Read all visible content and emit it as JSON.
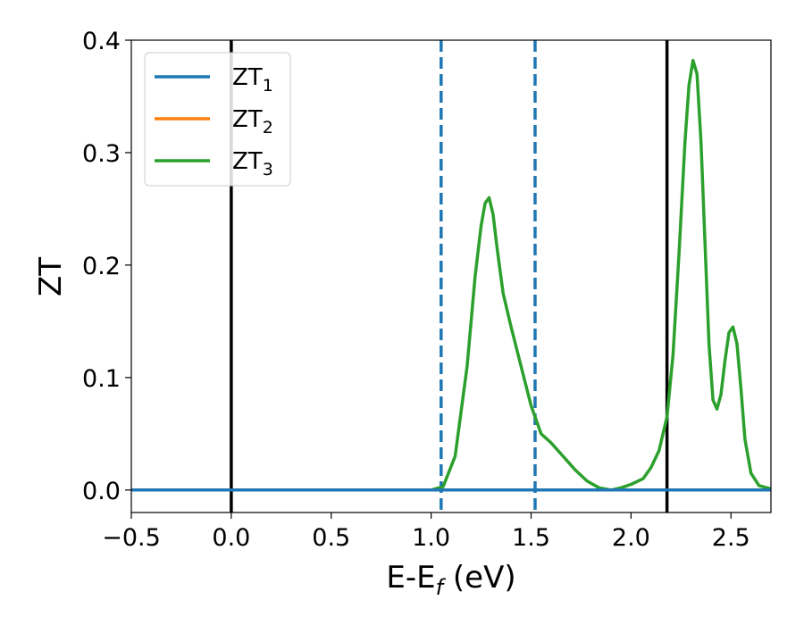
{
  "chart_data": {
    "type": "line",
    "title": "",
    "xlabel": {
      "main": "E-E",
      "sub": "f",
      "suffix": " (eV)"
    },
    "ylabel": "ZT",
    "xlim": [
      -0.5,
      2.7
    ],
    "ylim": [
      -0.02,
      0.4
    ],
    "xticks": [
      -0.5,
      0.0,
      0.5,
      1.0,
      1.5,
      2.0,
      2.5
    ],
    "xtick_labels": [
      "−0.5",
      "0.0",
      "0.5",
      "1.0",
      "1.5",
      "2.0",
      "2.5"
    ],
    "yticks": [
      0.0,
      0.1,
      0.2,
      0.3,
      0.4
    ],
    "ytick_labels": [
      "0.0",
      "0.1",
      "0.2",
      "0.3",
      "0.4"
    ],
    "grid": false,
    "legend_position": "top-left",
    "vlines": [
      {
        "x": 0.0,
        "style": "solid",
        "color": "#000000"
      },
      {
        "x": 2.18,
        "style": "solid",
        "color": "#000000"
      },
      {
        "x": 1.05,
        "style": "dashed",
        "color": "#1f77b4"
      },
      {
        "x": 1.52,
        "style": "dashed",
        "color": "#1f77b4"
      }
    ],
    "series": [
      {
        "name_main": "ZT",
        "name_sub": "1",
        "color": "#1f77b4",
        "x": [
          -0.5,
          2.7
        ],
        "y": [
          0.0,
          0.0
        ]
      },
      {
        "name_main": "ZT",
        "name_sub": "2",
        "color": "#ff7f0e",
        "x": [
          -0.5,
          2.7
        ],
        "y": [
          0.0,
          0.0
        ]
      },
      {
        "name_main": "ZT",
        "name_sub": "3",
        "color": "#2ca02c",
        "x": [
          -0.5,
          1.0,
          1.06,
          1.12,
          1.18,
          1.22,
          1.25,
          1.27,
          1.29,
          1.31,
          1.33,
          1.36,
          1.4,
          1.45,
          1.5,
          1.55,
          1.6,
          1.66,
          1.72,
          1.78,
          1.84,
          1.9,
          1.95,
          2.0,
          2.06,
          2.1,
          2.14,
          2.18,
          2.21,
          2.24,
          2.27,
          2.29,
          2.31,
          2.33,
          2.35,
          2.37,
          2.39,
          2.41,
          2.43,
          2.45,
          2.47,
          2.49,
          2.51,
          2.53,
          2.55,
          2.57,
          2.6,
          2.64,
          2.7
        ],
        "y": [
          0.0,
          0.0,
          0.003,
          0.03,
          0.11,
          0.19,
          0.235,
          0.255,
          0.26,
          0.245,
          0.215,
          0.175,
          0.145,
          0.11,
          0.075,
          0.05,
          0.042,
          0.03,
          0.018,
          0.008,
          0.002,
          0.0,
          0.002,
          0.005,
          0.01,
          0.02,
          0.035,
          0.065,
          0.12,
          0.21,
          0.31,
          0.36,
          0.382,
          0.37,
          0.31,
          0.22,
          0.13,
          0.08,
          0.072,
          0.085,
          0.115,
          0.14,
          0.145,
          0.13,
          0.09,
          0.045,
          0.015,
          0.004,
          0.001
        ]
      }
    ]
  }
}
